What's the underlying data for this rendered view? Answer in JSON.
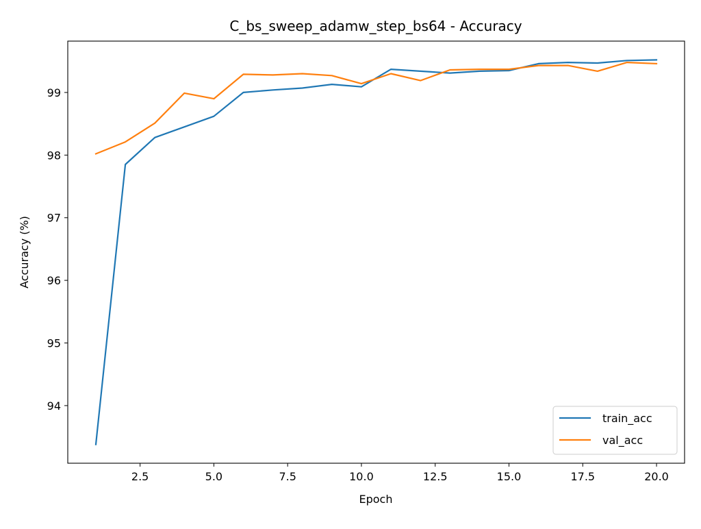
{
  "chart_data": {
    "type": "line",
    "title": "C_bs_sweep_adamw_step_bs64 - Accuracy",
    "xlabel": "Epoch",
    "ylabel": "Accuracy (%)",
    "xlim": [
      0.05,
      20.95
    ],
    "ylim": [
      93.08,
      99.82
    ],
    "xticks": [
      2.5,
      5.0,
      7.5,
      10.0,
      12.5,
      15.0,
      17.5,
      20.0
    ],
    "xtick_labels": [
      "2.5",
      "5.0",
      "7.5",
      "10.0",
      "12.5",
      "15.0",
      "17.5",
      "20.0"
    ],
    "yticks": [
      94,
      95,
      96,
      97,
      98,
      99
    ],
    "ytick_labels": [
      "94",
      "95",
      "96",
      "97",
      "98",
      "99"
    ],
    "grid": false,
    "legend_position": "lower-right",
    "x": [
      1,
      2,
      3,
      4,
      5,
      6,
      7,
      8,
      9,
      10,
      11,
      12,
      13,
      14,
      15,
      16,
      17,
      18,
      19,
      20
    ],
    "series": [
      {
        "name": "train_acc",
        "color": "#1f77b4",
        "values": [
          93.38,
          97.85,
          98.28,
          98.45,
          98.62,
          99.0,
          99.04,
          99.07,
          99.13,
          99.09,
          99.37,
          99.34,
          99.31,
          99.34,
          99.35,
          99.46,
          99.48,
          99.47,
          99.51,
          99.52
        ]
      },
      {
        "name": "val_acc",
        "color": "#ff7f0e",
        "values": [
          98.02,
          98.21,
          98.51,
          98.99,
          98.9,
          99.29,
          99.28,
          99.3,
          99.27,
          99.14,
          99.3,
          99.19,
          99.36,
          99.37,
          99.37,
          99.43,
          99.43,
          99.34,
          99.48,
          99.46
        ]
      }
    ]
  }
}
